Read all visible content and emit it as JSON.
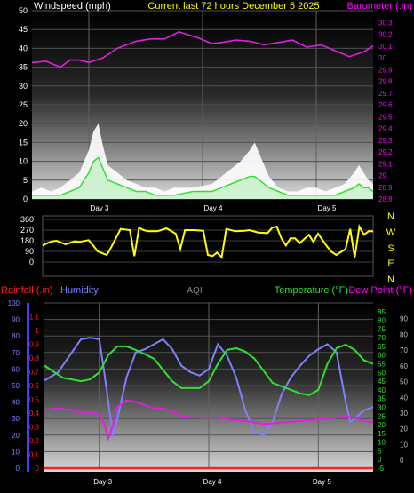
{
  "chart_data": [
    {
      "type": "line",
      "title": "Current last 72 hours December 5 2025",
      "left_axis": {
        "label": "Windspeed (mph)",
        "ylim": [
          0,
          50
        ],
        "ticks": [
          0,
          5,
          10,
          15,
          20,
          25,
          30,
          35,
          40,
          45,
          50
        ]
      },
      "right_axis": {
        "label": "Barometer (.in)",
        "ylim": [
          28.8,
          30.4
        ],
        "ticks": [
          "28.8",
          "28.9",
          "29",
          "29.1",
          "29.2",
          "29.3",
          "29.4",
          "29.5",
          "29.6",
          "29.7",
          "29.8",
          "29.9",
          "30",
          "30.1",
          "30.2",
          "30.3"
        ]
      },
      "x_labels": [
        "Day 3",
        "Day 4",
        "Day 5"
      ],
      "x_label_hours": [
        12,
        36,
        60
      ],
      "xlim_hours": [
        0,
        72
      ],
      "series": [
        {
          "axis": "right",
          "color": "#e020e0",
          "x": [
            0,
            3,
            6,
            8,
            10,
            12,
            15,
            18,
            22,
            25,
            28,
            31,
            35,
            38,
            40,
            43,
            46,
            49,
            52,
            55,
            58,
            61,
            64,
            67,
            70,
            72
          ],
          "values": [
            29.96,
            29.97,
            29.92,
            29.98,
            29.98,
            29.96,
            30.0,
            30.08,
            30.14,
            30.16,
            30.16,
            30.22,
            30.17,
            30.12,
            30.13,
            30.15,
            30.14,
            30.11,
            30.13,
            30.15,
            30.09,
            30.11,
            30.06,
            30.01,
            30.05,
            30.1
          ]
        },
        {
          "axis": "left",
          "color": "#ffffff",
          "x": [
            0,
            2,
            4,
            6,
            8,
            10,
            12,
            13,
            14,
            15,
            16,
            18,
            20,
            22,
            24,
            26,
            28,
            30,
            34,
            38,
            40,
            42,
            44,
            46,
            47,
            48,
            50,
            52,
            54,
            56,
            58,
            60,
            62,
            64,
            66,
            68,
            69,
            70,
            71,
            72
          ],
          "values": [
            2,
            3,
            2,
            3,
            5,
            7,
            13,
            18,
            20,
            14,
            9,
            7,
            5,
            4,
            3,
            3,
            2,
            3,
            3,
            4,
            6,
            8,
            10,
            13,
            15,
            12,
            6,
            3,
            2,
            2,
            3,
            3,
            2,
            3,
            4,
            7,
            9,
            7,
            5,
            4
          ]
        },
        {
          "axis": "left",
          "color": "#30e030",
          "x": [
            0,
            2,
            4,
            6,
            8,
            10,
            12,
            13,
            14,
            15,
            16,
            18,
            20,
            22,
            24,
            26,
            28,
            30,
            34,
            38,
            40,
            42,
            44,
            46,
            47,
            48,
            50,
            52,
            54,
            56,
            58,
            60,
            62,
            64,
            66,
            68,
            69,
            70,
            71,
            72
          ],
          "values": [
            1,
            1,
            1,
            1,
            2,
            3,
            7,
            10,
            11,
            8,
            5,
            4,
            3,
            2,
            2,
            1,
            1,
            1,
            2,
            2,
            3,
            4,
            5,
            6,
            6,
            5,
            3,
            2,
            1,
            1,
            1,
            1,
            1,
            1,
            2,
            3,
            4,
            3,
            3,
            2
          ]
        }
      ]
    },
    {
      "type": "line",
      "left_axis": {
        "ylim": [
          0,
          360
        ],
        "ticks": [
          0,
          90,
          180,
          270,
          360
        ]
      },
      "right_labels": [
        "N",
        "W",
        "S",
        "E",
        "N"
      ],
      "x_labels": [],
      "xlim_hours": [
        0,
        72
      ],
      "series": [
        {
          "color": "#ffff00",
          "x": [
            0,
            1,
            2,
            3,
            5,
            7,
            8,
            10,
            11,
            12,
            14,
            15,
            17,
            19,
            20,
            21,
            22,
            23,
            25,
            27,
            29,
            30,
            31,
            33,
            35,
            36,
            37,
            38,
            39,
            40,
            42,
            44,
            45,
            47,
            49,
            50,
            51,
            52,
            53,
            54,
            55,
            56,
            58,
            59,
            60,
            62,
            63,
            64,
            66,
            67,
            68,
            69,
            70,
            71,
            72
          ],
          "values": [
            140,
            160,
            175,
            180,
            150,
            175,
            170,
            185,
            140,
            90,
            60,
            130,
            280,
            270,
            50,
            290,
            270,
            260,
            260,
            285,
            240,
            110,
            270,
            270,
            265,
            60,
            50,
            80,
            40,
            280,
            260,
            265,
            270,
            250,
            245,
            290,
            300,
            200,
            140,
            200,
            200,
            160,
            230,
            170,
            240,
            130,
            85,
            60,
            110,
            280,
            40,
            300,
            230,
            260,
            260
          ]
        }
      ]
    },
    {
      "type": "line",
      "left_axes": [
        {
          "label": "Humidity",
          "ylim": [
            0,
            100
          ],
          "ticks": [
            0,
            10,
            20,
            30,
            40,
            50,
            60,
            70,
            80,
            90,
            100
          ]
        },
        {
          "label": "Rainfall (.in)",
          "ylim": [
            0,
            1.2
          ],
          "ticks": [
            "0",
            "0.1",
            "0.2",
            "0.3",
            "0.4",
            "0.5",
            "0.6",
            "0.7",
            "0.8",
            "0.9",
            "1",
            "1.1"
          ]
        }
      ],
      "right_axes": [
        {
          "label": "Temperature (°F)",
          "ylim": [
            -5,
            90
          ],
          "ticks": [
            -5,
            0,
            5,
            10,
            15,
            20,
            25,
            30,
            35,
            40,
            45,
            50,
            55,
            60,
            65,
            70,
            75,
            80,
            85
          ]
        },
        {
          "label": "Dew Point (°F)",
          "ylim": [
            -5,
            100
          ],
          "ticks": [
            0,
            10,
            20,
            30,
            40,
            50,
            60,
            70,
            80,
            90
          ]
        }
      ],
      "center_label": "AQI",
      "x_labels": [
        "Day 3",
        "Day 4",
        "Day 5"
      ],
      "xlim_hours": [
        0,
        72
      ],
      "series": [
        {
          "axis": "Humidity",
          "color": "#8080ff",
          "x": [
            0,
            3,
            6,
            8,
            10,
            12,
            13,
            14,
            15,
            16,
            18,
            20,
            22,
            24,
            26,
            28,
            30,
            32,
            34,
            36,
            38,
            40,
            42,
            44,
            46,
            48,
            50,
            52,
            54,
            56,
            58,
            60,
            62,
            64,
            66,
            67,
            68,
            70,
            72
          ],
          "values": [
            53,
            58,
            70,
            78,
            79,
            78,
            60,
            40,
            20,
            30,
            55,
            70,
            72,
            75,
            78,
            72,
            62,
            58,
            56,
            60,
            75,
            68,
            55,
            35,
            22,
            20,
            28,
            45,
            55,
            62,
            68,
            72,
            75,
            70,
            40,
            28,
            30,
            35,
            37
          ]
        },
        {
          "axis": "Temperature (°F)",
          "color": "#30e030",
          "x": [
            0,
            4,
            8,
            10,
            12,
            14,
            16,
            18,
            20,
            24,
            28,
            30,
            34,
            36,
            38,
            40,
            42,
            44,
            46,
            50,
            54,
            56,
            58,
            60,
            62,
            64,
            66,
            68,
            70,
            72
          ],
          "values": [
            54,
            47,
            45,
            46,
            50,
            60,
            65,
            65,
            63,
            58,
            45,
            41,
            41,
            45,
            55,
            63,
            64,
            62,
            58,
            44,
            40,
            38,
            37,
            40,
            55,
            64,
            66,
            63,
            57,
            55
          ]
        },
        {
          "axis": "Dew Point (°F)",
          "color": "#e020e0",
          "x": [
            0,
            3,
            6,
            8,
            10,
            12,
            13,
            14,
            15,
            16,
            18,
            20,
            22,
            24,
            26,
            28,
            30,
            34,
            38,
            40,
            44,
            46,
            48,
            52,
            56,
            60,
            64,
            66,
            68,
            70,
            72
          ],
          "values": [
            32,
            33,
            32,
            30,
            30,
            29,
            24,
            14,
            22,
            34,
            38,
            37,
            35,
            33,
            33,
            31,
            28,
            27,
            27,
            26,
            25,
            24,
            23,
            24,
            25,
            26,
            27,
            28,
            27,
            25,
            24
          ]
        },
        {
          "axis": "Rainfall (.in)",
          "color": "#ff2020",
          "x": [
            0,
            72
          ],
          "values": [
            0,
            0
          ]
        }
      ]
    }
  ]
}
